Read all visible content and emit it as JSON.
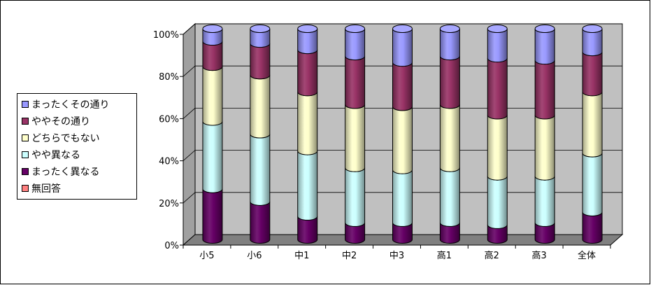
{
  "chart_data": {
    "type": "bar",
    "stacked": true,
    "style": "3d-cylinder",
    "percent": true,
    "categories": [
      "小5",
      "小6",
      "中1",
      "中2",
      "中3",
      "高1",
      "高2",
      "高3",
      "全体"
    ],
    "ylim": [
      0,
      100
    ],
    "yticks": [
      "0%",
      "20%",
      "40%",
      "60%",
      "80%",
      "100%"
    ],
    "grid": true,
    "legend_position": "left",
    "series": [
      {
        "name": "無回答",
        "color": "#ff8080",
        "values": [
          0,
          0,
          0,
          0,
          0,
          0,
          0,
          0,
          0
        ]
      },
      {
        "name": "まったく異なる",
        "color": "#660066",
        "values": [
          24,
          18,
          11,
          8,
          8,
          8,
          7,
          8,
          13
        ]
      },
      {
        "name": "やや異なる",
        "color": "#ccffff",
        "values": [
          32,
          32,
          31,
          26,
          25,
          26,
          23,
          22,
          28
        ]
      },
      {
        "name": "どちらでもない",
        "color": "#ffffcc",
        "values": [
          26,
          28,
          28,
          30,
          30,
          30,
          29,
          29,
          29
        ]
      },
      {
        "name": "ややその通り",
        "color": "#993366",
        "values": [
          12,
          15,
          20,
          23,
          21,
          23,
          27,
          26,
          19
        ]
      },
      {
        "name": "まったくその通り",
        "color": "#9999ff",
        "values": [
          6,
          7,
          10,
          13,
          16,
          13,
          14,
          15,
          11
        ]
      }
    ]
  }
}
